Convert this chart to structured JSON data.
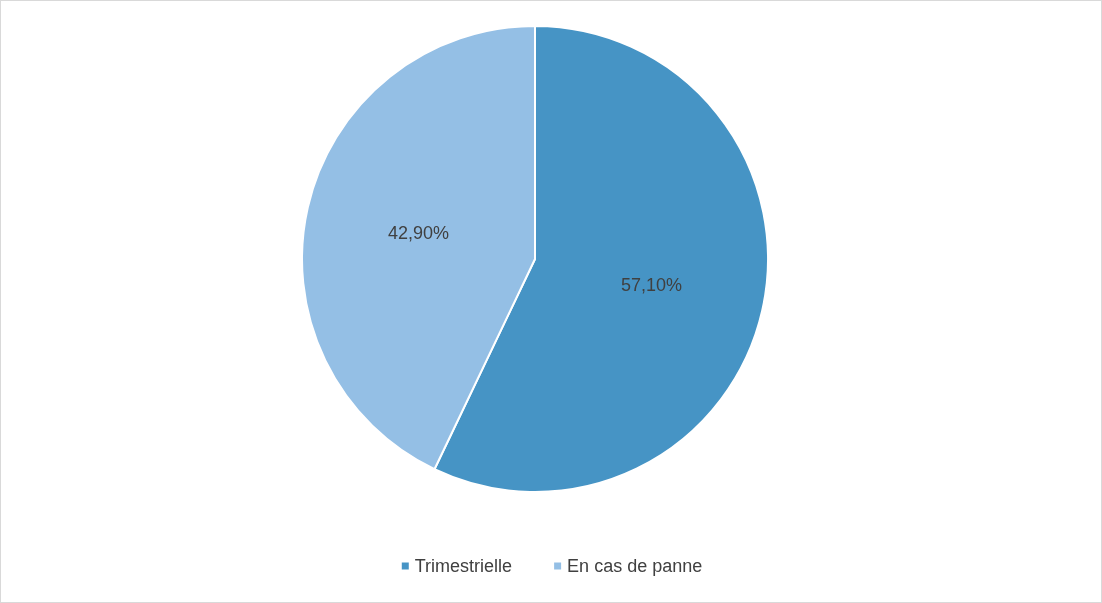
{
  "chart_data": {
    "type": "pie",
    "categories": [
      "Trimestrielle",
      "En cas de panne"
    ],
    "values": [
      57.1,
      42.9
    ],
    "colors": [
      "#4694c5",
      "#94bfe5"
    ],
    "value_labels": [
      "57,10%",
      "42,90%"
    ],
    "legend": "bottom"
  }
}
